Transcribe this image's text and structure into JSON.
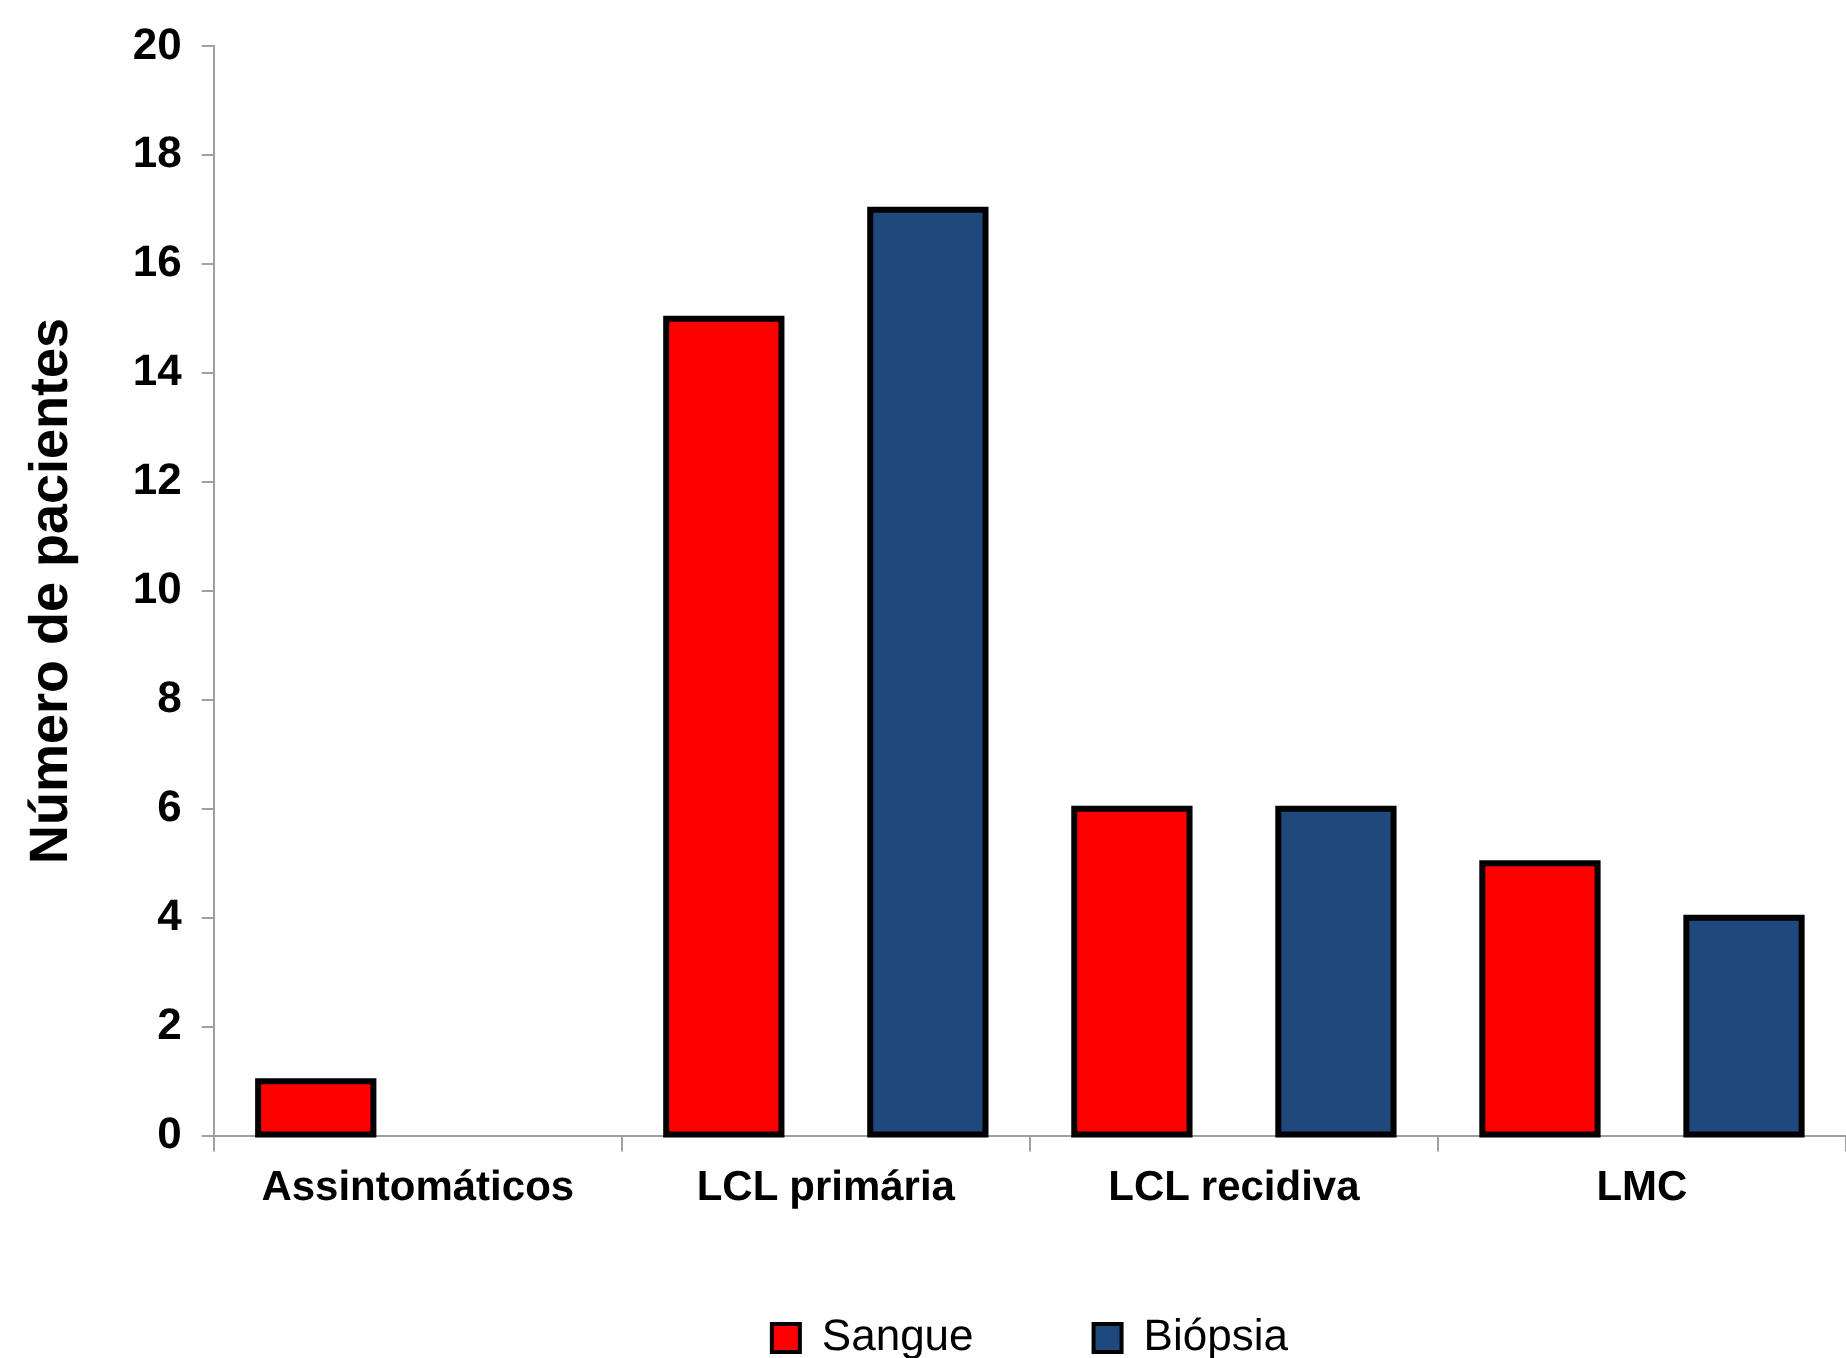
{
  "chart_data": {
    "type": "bar",
    "ylabel": "Número de pacientes",
    "categories": [
      "Assintomáticos",
      "LCL primária",
      "LCL recidiva",
      "LMC"
    ],
    "series": [
      {
        "name": "Sangue",
        "color": "#ff0000",
        "values": [
          1,
          15,
          6,
          5
        ]
      },
      {
        "name": "Biópsia",
        "color": "#1f497d",
        "values": [
          null,
          17,
          6,
          4
        ]
      }
    ],
    "ylim": [
      0,
      20
    ],
    "yticks": [
      0,
      2,
      4,
      6,
      8,
      10,
      12,
      14,
      16,
      18,
      20
    ],
    "grid": false,
    "legend": "bottom"
  }
}
